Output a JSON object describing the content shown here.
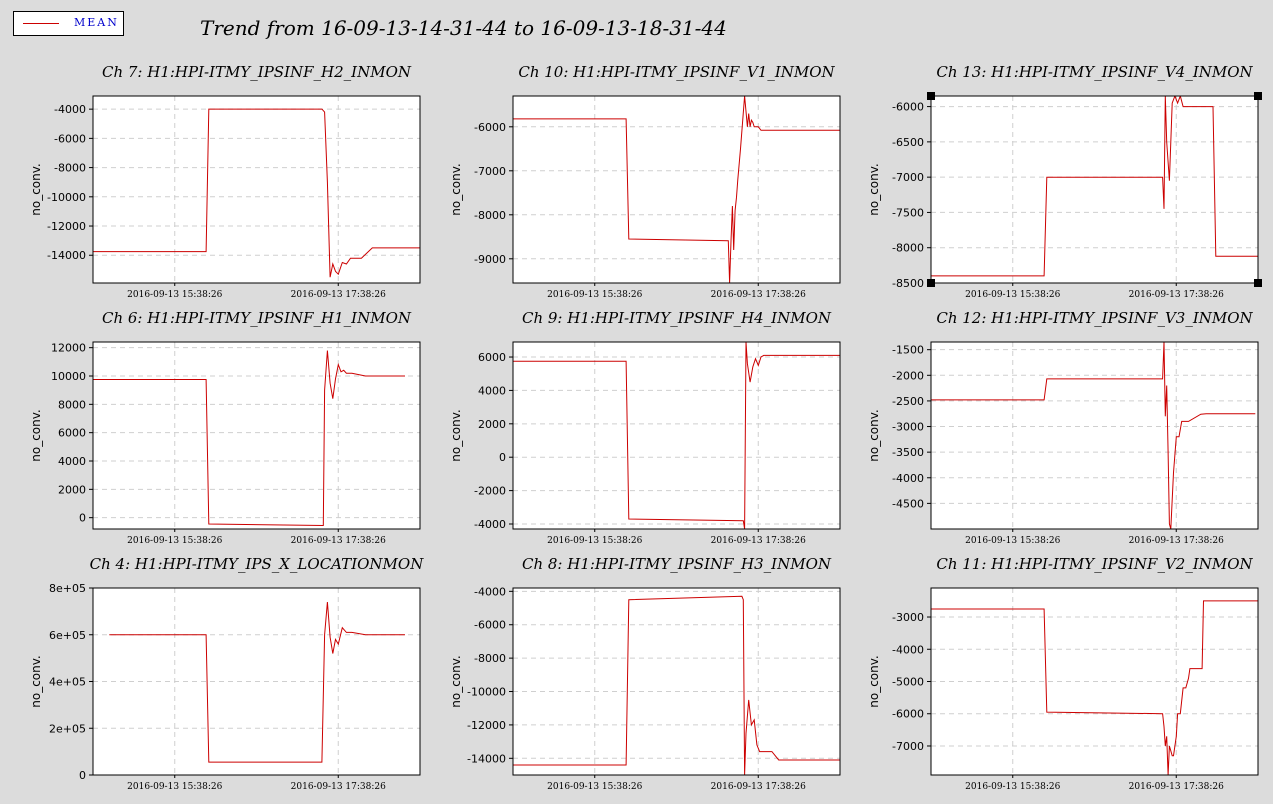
{
  "legend": {
    "label": "MEAN",
    "color": "#cc0000"
  },
  "title": "Trend from 16-09-13-14-31-44 to 16-09-13-18-31-44",
  "chart_data": [
    {
      "type": "line",
      "title": "Ch 7: H1:HPI-ITMY_IPSINF_H2_INMON",
      "ylabel": "no_conv.",
      "xlim": [
        0,
        240
      ],
      "ylim": [
        -15900,
        -3100
      ],
      "yticks": [
        -4000,
        -6000,
        -8000,
        -10000,
        -12000,
        -14000
      ],
      "ytick_labels": [
        "-4000",
        "-6000",
        "-8000",
        "-10000",
        "-12000",
        "-14000"
      ],
      "xticks": [
        60,
        180
      ],
      "xtick_labels": [
        "2016-09-13 15:38:26",
        "2016-09-13 17:38:26"
      ],
      "series": [
        {
          "x": [
            0,
            83,
            85,
            168,
            170,
            172,
            174,
            176,
            178,
            180,
            183,
            186,
            189,
            192,
            197,
            205,
            240
          ],
          "y": [
            -13750,
            -13750,
            -4000,
            -4000,
            -4200,
            -9000,
            -15500,
            -14600,
            -15100,
            -15300,
            -14500,
            -14600,
            -14200,
            -14200,
            -14200,
            -13500,
            -13500
          ]
        }
      ]
    },
    {
      "type": "line",
      "title": "Ch 10: H1:HPI-ITMY_IPSINF_V1_INMON",
      "ylabel": "no_conv.",
      "xlim": [
        0,
        240
      ],
      "ylim": [
        -9550,
        -5300
      ],
      "yticks": [
        -6000,
        -7000,
        -8000,
        -9000
      ],
      "ytick_labels": [
        "-6000",
        "-7000",
        "-8000",
        "-9000"
      ],
      "xticks": [
        60,
        180
      ],
      "xtick_labels": [
        "2016-09-13 15:38:26",
        "2016-09-13 17:38:26"
      ],
      "series": [
        {
          "x": [
            0,
            83,
            85,
            158,
            159,
            160,
            161,
            162,
            163,
            164,
            165,
            167,
            170,
            172,
            173,
            174,
            175,
            176,
            177,
            180,
            182,
            240
          ],
          "y": [
            -5820,
            -5820,
            -8550,
            -8590,
            -9550,
            -8600,
            -7800,
            -8800,
            -7900,
            -7600,
            -7200,
            -6500,
            -5300,
            -6000,
            -5700,
            -6000,
            -5850,
            -5900,
            -6000,
            -6000,
            -6080,
            -6080
          ]
        }
      ]
    },
    {
      "type": "line",
      "title": "Ch 13: H1:HPI-ITMY_IPSINF_V4_INMON",
      "ylabel": "no_conv.",
      "xlim": [
        0,
        240
      ],
      "ylim": [
        -8500,
        -5850
      ],
      "yticks": [
        -6000,
        -6500,
        -7000,
        -7500,
        -8000,
        -8500
      ],
      "ytick_labels": [
        "-6000",
        "-6500",
        "-7000",
        "-7500",
        "-8000",
        "-8500"
      ],
      "xticks": [
        60,
        180
      ],
      "xtick_labels": [
        "2016-09-13 15:38:26",
        "2016-09-13 17:38:26"
      ],
      "series": [
        {
          "x": [
            0,
            83,
            85,
            170,
            171,
            172,
            173,
            175,
            177,
            179,
            181,
            183,
            185,
            189,
            199,
            207,
            209,
            240
          ],
          "y": [
            -8400,
            -8400,
            -7000,
            -7000,
            -7450,
            -5850,
            -6500,
            -7050,
            -5950,
            -5850,
            -5950,
            -5850,
            -6000,
            -6000,
            -6000,
            -6000,
            -8120,
            -8120
          ]
        }
      ]
    },
    {
      "type": "line",
      "title": "Ch 6: H1:HPI-ITMY_IPSINF_H1_INMON",
      "ylabel": "no_conv.",
      "xlim": [
        0,
        240
      ],
      "ylim": [
        -800,
        12400
      ],
      "yticks": [
        12000,
        10000,
        8000,
        6000,
        4000,
        2000,
        0
      ],
      "ytick_labels": [
        "12000",
        "10000",
        "8000",
        "6000",
        "4000",
        "2000",
        "0"
      ],
      "xticks": [
        60,
        180
      ],
      "xtick_labels": [
        "2016-09-13 15:38:26",
        "2016-09-13 17:38:26"
      ],
      "series": [
        {
          "x": [
            0,
            83,
            85,
            169,
            170,
            172,
            174,
            176,
            178,
            180,
            182,
            184,
            186,
            190,
            200,
            229
          ],
          "y": [
            9750,
            9750,
            -450,
            -550,
            9000,
            11800,
            9500,
            8400,
            9800,
            10800,
            10300,
            10400,
            10200,
            10200,
            10000,
            10000
          ]
        }
      ]
    },
    {
      "type": "line",
      "title": "Ch 9: H1:HPI-ITMY_IPSINF_H4_INMON",
      "ylabel": "no_conv.",
      "xlim": [
        0,
        240
      ],
      "ylim": [
        -4300,
        6900
      ],
      "yticks": [
        6000,
        4000,
        2000,
        0,
        -2000,
        -4000
      ],
      "ytick_labels": [
        "6000",
        "4000",
        "2000",
        "0",
        "-2000",
        "-4000"
      ],
      "xticks": [
        60,
        180
      ],
      "xtick_labels": [
        "2016-09-13 15:38:26",
        "2016-09-13 17:38:26"
      ],
      "series": [
        {
          "x": [
            0,
            83,
            85,
            169,
            170,
            171,
            172,
            174,
            176,
            178,
            180,
            182,
            184,
            240
          ],
          "y": [
            5750,
            5750,
            -3700,
            -3800,
            -4300,
            6900,
            5600,
            4500,
            5400,
            5900,
            5500,
            6000,
            6100,
            6100
          ]
        }
      ]
    },
    {
      "type": "line",
      "title": "Ch 12: H1:HPI-ITMY_IPSINF_V3_INMON",
      "ylabel": "no_conv.",
      "xlim": [
        0,
        240
      ],
      "ylim": [
        -5000,
        -1350
      ],
      "yticks": [
        -1500,
        -2000,
        -2500,
        -3000,
        -3500,
        -4000,
        -4500
      ],
      "ytick_labels": [
        "-1500",
        "-2000",
        "-2500",
        "-3000",
        "-3500",
        "-4000",
        "-4500"
      ],
      "xticks": [
        60,
        180
      ],
      "xtick_labels": [
        "2016-09-13 15:38:26",
        "2016-09-13 17:38:26"
      ],
      "series": [
        {
          "x": [
            0,
            83,
            85,
            170,
            171,
            172,
            173,
            174,
            175,
            176,
            178,
            180,
            182,
            184,
            186,
            189,
            198,
            202,
            238
          ],
          "y": [
            -2480,
            -2480,
            -2070,
            -2070,
            -1350,
            -2800,
            -2200,
            -3500,
            -4900,
            -5000,
            -3900,
            -3200,
            -3200,
            -2900,
            -2900,
            -2900,
            -2760,
            -2750,
            -2750
          ]
        }
      ]
    },
    {
      "type": "line",
      "title": "Ch 4: H1:HPI-ITMY_IPS_X_LOCATIONMON",
      "ylabel": "no_conv.",
      "xlim": [
        0,
        240
      ],
      "ylim": [
        0,
        800000
      ],
      "yticks": [
        800000,
        600000,
        400000,
        200000,
        0
      ],
      "ytick_labels": [
        "8e+05",
        "6e+05",
        "4e+05",
        "2e+05",
        "0"
      ],
      "xticks": [
        60,
        180
      ],
      "xtick_labels": [
        "2016-09-13 15:38:26",
        "2016-09-13 17:38:26"
      ],
      "series": [
        {
          "x": [
            12,
            83,
            85,
            168,
            170,
            172,
            174,
            176,
            178,
            180,
            183,
            186,
            190,
            200,
            229
          ],
          "y": [
            600000,
            600000,
            55000,
            55000,
            600000,
            740000,
            590000,
            520000,
            580000,
            560000,
            630000,
            610000,
            610000,
            600000,
            600000
          ]
        }
      ]
    },
    {
      "type": "line",
      "title": "Ch 8: H1:HPI-ITMY_IPSINF_H3_INMON",
      "ylabel": "no_conv.",
      "xlim": [
        0,
        240
      ],
      "ylim": [
        -15000,
        -3800
      ],
      "yticks": [
        -4000,
        -6000,
        -8000,
        -10000,
        -12000,
        -14000
      ],
      "ytick_labels": [
        "-4000",
        "-6000",
        "-8000",
        "-10000",
        "-12000",
        "-14000"
      ],
      "xticks": [
        60,
        180
      ],
      "xtick_labels": [
        "2016-09-13 15:38:26",
        "2016-09-13 17:38:26"
      ],
      "series": [
        {
          "x": [
            0,
            83,
            85,
            168,
            169,
            170,
            171,
            173,
            175,
            177,
            179,
            181,
            185,
            190,
            195,
            240
          ],
          "y": [
            -14400,
            -14400,
            -4500,
            -4300,
            -4500,
            -15000,
            -12500,
            -10500,
            -12000,
            -11700,
            -13200,
            -13600,
            -13600,
            -13600,
            -14100,
            -14100
          ]
        }
      ]
    },
    {
      "type": "line",
      "title": "Ch 11: H1:HPI-ITMY_IPSINF_V2_INMON",
      "ylabel": "no_conv.",
      "xlim": [
        0,
        240
      ],
      "ylim": [
        -7900,
        -2100
      ],
      "yticks": [
        -3000,
        -4000,
        -5000,
        -6000,
        -7000
      ],
      "ytick_labels": [
        "-3000",
        "-4000",
        "-5000",
        "-6000",
        "-7000"
      ],
      "xticks": [
        60,
        180
      ],
      "xtick_labels": [
        "2016-09-13 15:38:26",
        "2016-09-13 17:38:26"
      ],
      "series": [
        {
          "x": [
            0,
            83,
            85,
            170,
            171,
            172,
            173,
            174,
            175,
            177,
            178,
            180,
            181,
            183,
            185,
            187,
            189,
            190,
            195,
            199,
            200,
            240
          ],
          "y": [
            -2750,
            -2750,
            -5950,
            -6000,
            -6400,
            -7000,
            -6700,
            -7900,
            -7000,
            -7300,
            -7300,
            -6700,
            -6000,
            -6000,
            -5200,
            -5200,
            -4900,
            -4600,
            -4600,
            -4600,
            -2500,
            -2500
          ]
        }
      ]
    }
  ]
}
